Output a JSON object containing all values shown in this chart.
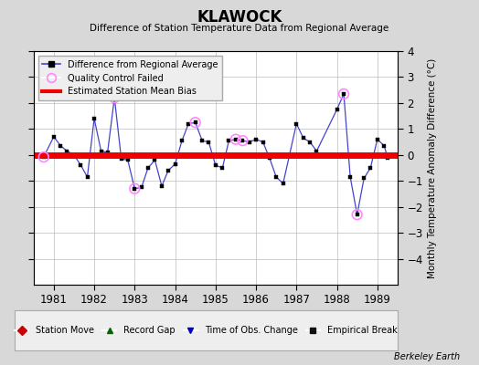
{
  "title": "KLAWOCK",
  "subtitle": "Difference of Station Temperature Data from Regional Average",
  "ylabel_right": "Monthly Temperature Anomaly Difference (°C)",
  "footer": "Berkeley Earth",
  "ylim": [
    -5,
    4
  ],
  "yticks": [
    -4,
    -3,
    -2,
    -1,
    0,
    1,
    2,
    3,
    4
  ],
  "xlim": [
    1980.5,
    1989.5
  ],
  "xticks": [
    1981,
    1982,
    1983,
    1984,
    1985,
    1986,
    1987,
    1988,
    1989
  ],
  "bias": 0.0,
  "line_color": "#4444cc",
  "marker_color": "#000000",
  "bias_color": "#ee0000",
  "qc_color": "#ff88ff",
  "background_color": "#d8d8d8",
  "plot_background": "#ffffff",
  "grid_color": "#bbbbbb",
  "data_x": [
    1980.75,
    1981.0,
    1981.17,
    1981.33,
    1981.5,
    1981.67,
    1981.83,
    1982.0,
    1982.17,
    1982.33,
    1982.5,
    1982.67,
    1982.83,
    1983.0,
    1983.17,
    1983.33,
    1983.5,
    1983.67,
    1983.83,
    1984.0,
    1984.17,
    1984.33,
    1984.5,
    1984.67,
    1984.83,
    1985.0,
    1985.17,
    1985.33,
    1985.5,
    1985.67,
    1985.83,
    1986.0,
    1986.17,
    1986.33,
    1986.5,
    1986.67,
    1987.0,
    1987.17,
    1987.33,
    1987.5,
    1988.0,
    1988.17,
    1988.33,
    1988.5,
    1988.67,
    1988.83,
    1989.0,
    1989.17,
    1989.25
  ],
  "data_y": [
    -0.08,
    0.7,
    0.35,
    0.15,
    0.0,
    -0.4,
    -0.85,
    1.4,
    0.15,
    0.1,
    2.2,
    -0.15,
    -0.2,
    -1.3,
    -1.25,
    -0.5,
    -0.2,
    -1.2,
    -0.6,
    -0.35,
    0.55,
    1.2,
    1.25,
    0.55,
    0.5,
    -0.4,
    -0.5,
    0.55,
    0.6,
    0.55,
    0.5,
    0.6,
    0.5,
    -0.1,
    -0.85,
    -1.1,
    1.2,
    0.65,
    0.5,
    0.15,
    1.75,
    2.35,
    -0.85,
    -2.3,
    -0.9,
    -0.5,
    0.6,
    0.35,
    -0.1
  ],
  "qc_failed_x": [
    1980.75,
    1982.5,
    1983.0,
    1984.5,
    1985.5,
    1985.67,
    1988.17,
    1988.5
  ],
  "qc_failed_y": [
    -0.08,
    2.2,
    -1.3,
    1.25,
    0.6,
    0.55,
    2.35,
    -2.3
  ]
}
